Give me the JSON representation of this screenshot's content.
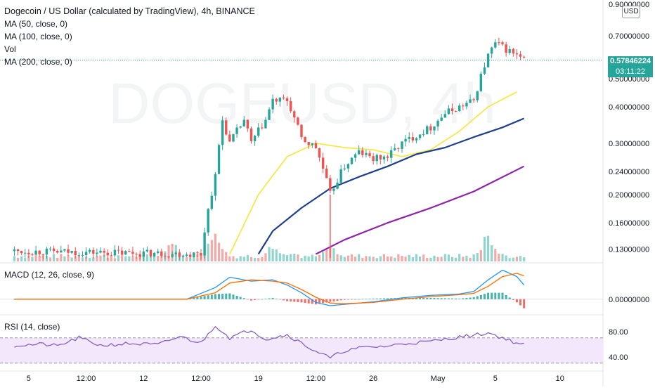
{
  "header": {
    "title": "Dogecoin / US Dollar (calculated by TradingView), 4h, BINANCE",
    "legend": [
      "MA (50, close, 0)",
      "MA (100, close, 0)",
      "Vol",
      "MA (200, close, 0)"
    ]
  },
  "watermark": {
    "symbol": "DOGEUSD, 4h"
  },
  "currency_badge": "USD",
  "last_price": {
    "value": "0.57846224",
    "countdown": "03:11:22"
  },
  "colors": {
    "up": "#26a69a",
    "down": "#ef5350",
    "ma50": "#f5e84a",
    "ma100": "#1e3f8f",
    "ma200": "#8e24aa",
    "macd": "#2196f3",
    "signal": "#ff6d00",
    "rsi": "#7e57c2",
    "rsi_band": "#f3e7fb"
  },
  "panes": {
    "macd_label": "MACD (12, 26, close, 9)",
    "rsi_label": "RSI (14, close)"
  },
  "chart_data": [
    {
      "type": "candlestick",
      "title": "Dogecoin / US Dollar (calculated by TradingView), 4h, BINANCE",
      "scale": "log",
      "y_ticks": [
        "0.90000000",
        "0.70000000",
        "0.50000000",
        "0.40000000",
        "0.30000000",
        "0.24000000",
        "0.20000000",
        "0.16000000",
        "0.13000000"
      ],
      "y_tick_values": [
        0.9,
        0.7,
        0.5,
        0.4,
        0.3,
        0.24,
        0.2,
        0.16,
        0.13
      ],
      "x_ticks": [
        "5",
        "12:00",
        "12",
        "12:00",
        "19",
        "12:00",
        "26",
        "May",
        "5",
        "10"
      ],
      "x_tick_positions": [
        2,
        10,
        18,
        26,
        34,
        42,
        50,
        59,
        67,
        76
      ],
      "x_axis": "bar index, 1 bar = 4h",
      "key_points": [
        {
          "x": 0,
          "y": 0.128
        },
        {
          "x": 26,
          "y": 0.125
        },
        {
          "x": 28,
          "y": 0.23
        },
        {
          "x": 29,
          "y": 0.36
        },
        {
          "x": 30,
          "y": 0.3
        },
        {
          "x": 32,
          "y": 0.36
        },
        {
          "x": 33,
          "y": 0.3
        },
        {
          "x": 35,
          "y": 0.36
        },
        {
          "x": 36,
          "y": 0.42
        },
        {
          "x": 38,
          "y": 0.42
        },
        {
          "x": 40,
          "y": 0.31
        },
        {
          "x": 42,
          "y": 0.29
        },
        {
          "x": 44,
          "y": 0.2
        },
        {
          "x": 46,
          "y": 0.25
        },
        {
          "x": 48,
          "y": 0.28
        },
        {
          "x": 50,
          "y": 0.265
        },
        {
          "x": 52,
          "y": 0.27
        },
        {
          "x": 54,
          "y": 0.3
        },
        {
          "x": 56,
          "y": 0.32
        },
        {
          "x": 58,
          "y": 0.34
        },
        {
          "x": 60,
          "y": 0.38
        },
        {
          "x": 62,
          "y": 0.4
        },
        {
          "x": 64,
          "y": 0.42
        },
        {
          "x": 66,
          "y": 0.6
        },
        {
          "x": 67,
          "y": 0.66
        },
        {
          "x": 69,
          "y": 0.62
        },
        {
          "x": 71,
          "y": 0.57846224
        }
      ],
      "ma50_points": [
        {
          "x": 30,
          "y": 0.125
        },
        {
          "x": 34,
          "y": 0.2
        },
        {
          "x": 38,
          "y": 0.27
        },
        {
          "x": 42,
          "y": 0.3
        },
        {
          "x": 46,
          "y": 0.29
        },
        {
          "x": 50,
          "y": 0.285
        },
        {
          "x": 54,
          "y": 0.27
        },
        {
          "x": 58,
          "y": 0.285
        },
        {
          "x": 62,
          "y": 0.33
        },
        {
          "x": 66,
          "y": 0.4
        },
        {
          "x": 70,
          "y": 0.45
        }
      ],
      "ma100_points": [
        {
          "x": 34,
          "y": 0.125
        },
        {
          "x": 36,
          "y": 0.15
        },
        {
          "x": 40,
          "y": 0.18
        },
        {
          "x": 44,
          "y": 0.21
        },
        {
          "x": 48,
          "y": 0.23
        },
        {
          "x": 52,
          "y": 0.25
        },
        {
          "x": 56,
          "y": 0.275
        },
        {
          "x": 60,
          "y": 0.29
        },
        {
          "x": 64,
          "y": 0.315
        },
        {
          "x": 68,
          "y": 0.34
        },
        {
          "x": 71,
          "y": 0.365
        }
      ],
      "ma200_points": [
        {
          "x": 42,
          "y": 0.125
        },
        {
          "x": 46,
          "y": 0.14
        },
        {
          "x": 52,
          "y": 0.16
        },
        {
          "x": 58,
          "y": 0.18
        },
        {
          "x": 64,
          "y": 0.205
        },
        {
          "x": 71,
          "y": 0.25
        }
      ],
      "volume_note": "relative volume bars at bottom of price pane",
      "volume_peaks": [
        {
          "x": 22,
          "v": 0.55
        },
        {
          "x": 28,
          "v": 0.9
        },
        {
          "x": 36,
          "v": 0.5
        },
        {
          "x": 44,
          "v": 0.45
        },
        {
          "x": 66,
          "v": 0.85
        }
      ]
    },
    {
      "type": "line",
      "title": "MACD (12, 26, close, 9)",
      "y_ticks": [
        "0.00000000"
      ],
      "series": [
        {
          "name": "MACD",
          "points": [
            {
              "x": 0,
              "y": 0.0
            },
            {
              "x": 24,
              "y": 0.0
            },
            {
              "x": 28,
              "y": 0.018
            },
            {
              "x": 30,
              "y": 0.034
            },
            {
              "x": 33,
              "y": 0.028
            },
            {
              "x": 36,
              "y": 0.03
            },
            {
              "x": 38,
              "y": 0.022
            },
            {
              "x": 40,
              "y": 0.01
            },
            {
              "x": 42,
              "y": -0.005
            },
            {
              "x": 44,
              "y": -0.01
            },
            {
              "x": 46,
              "y": -0.008
            },
            {
              "x": 50,
              "y": -0.004
            },
            {
              "x": 54,
              "y": 0.002
            },
            {
              "x": 58,
              "y": 0.006
            },
            {
              "x": 62,
              "y": 0.008
            },
            {
              "x": 64,
              "y": 0.012
            },
            {
              "x": 66,
              "y": 0.03
            },
            {
              "x": 68,
              "y": 0.045
            },
            {
              "x": 70,
              "y": 0.035
            },
            {
              "x": 71,
              "y": 0.022
            }
          ]
        },
        {
          "name": "Signal",
          "points": [
            {
              "x": 0,
              "y": 0.0
            },
            {
              "x": 24,
              "y": 0.0
            },
            {
              "x": 28,
              "y": 0.01
            },
            {
              "x": 30,
              "y": 0.025
            },
            {
              "x": 33,
              "y": 0.03
            },
            {
              "x": 36,
              "y": 0.028
            },
            {
              "x": 38,
              "y": 0.025
            },
            {
              "x": 40,
              "y": 0.015
            },
            {
              "x": 42,
              "y": 0.003
            },
            {
              "x": 44,
              "y": -0.006
            },
            {
              "x": 46,
              "y": -0.007
            },
            {
              "x": 50,
              "y": -0.005
            },
            {
              "x": 54,
              "y": 0.0
            },
            {
              "x": 58,
              "y": 0.004
            },
            {
              "x": 62,
              "y": 0.007
            },
            {
              "x": 64,
              "y": 0.009
            },
            {
              "x": 66,
              "y": 0.02
            },
            {
              "x": 68,
              "y": 0.035
            },
            {
              "x": 70,
              "y": 0.04
            },
            {
              "x": 71,
              "y": 0.036
            }
          ]
        }
      ]
    },
    {
      "type": "line",
      "title": "RSI (14, close)",
      "y_ticks": [
        "80.00",
        "40.00"
      ],
      "y_tick_values": [
        80,
        40
      ],
      "band": [
        30,
        70
      ],
      "series": [
        {
          "name": "RSI",
          "points": [
            {
              "x": 0,
              "y": 58
            },
            {
              "x": 4,
              "y": 60
            },
            {
              "x": 6,
              "y": 57
            },
            {
              "x": 9,
              "y": 70
            },
            {
              "x": 12,
              "y": 58
            },
            {
              "x": 16,
              "y": 61
            },
            {
              "x": 20,
              "y": 59
            },
            {
              "x": 23,
              "y": 72
            },
            {
              "x": 26,
              "y": 62
            },
            {
              "x": 28,
              "y": 90
            },
            {
              "x": 30,
              "y": 70
            },
            {
              "x": 33,
              "y": 83
            },
            {
              "x": 35,
              "y": 68
            },
            {
              "x": 38,
              "y": 75
            },
            {
              "x": 41,
              "y": 55
            },
            {
              "x": 44,
              "y": 38
            },
            {
              "x": 46,
              "y": 50
            },
            {
              "x": 49,
              "y": 55
            },
            {
              "x": 52,
              "y": 57
            },
            {
              "x": 55,
              "y": 62
            },
            {
              "x": 58,
              "y": 64
            },
            {
              "x": 61,
              "y": 70
            },
            {
              "x": 64,
              "y": 74
            },
            {
              "x": 66,
              "y": 78
            },
            {
              "x": 68,
              "y": 70
            },
            {
              "x": 70,
              "y": 62
            },
            {
              "x": 71,
              "y": 59
            }
          ]
        }
      ]
    }
  ]
}
